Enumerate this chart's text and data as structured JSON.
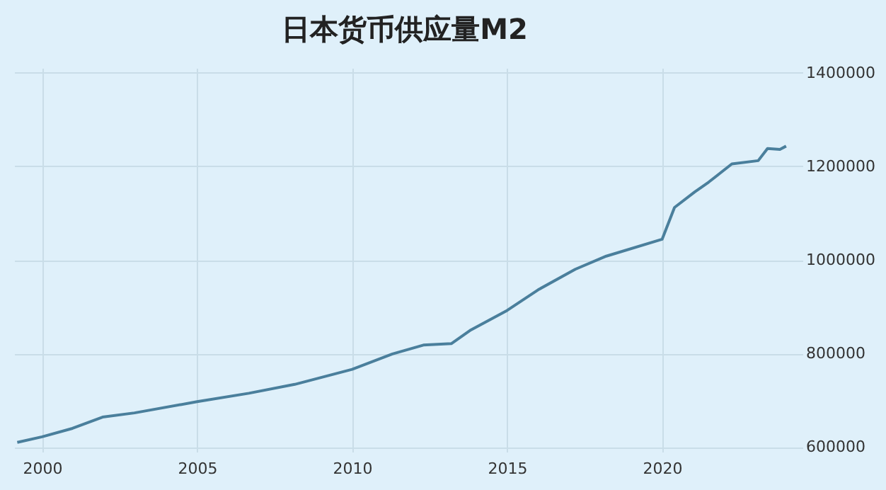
{
  "chart_data": {
    "type": "line",
    "title": "日本货币供应量M2",
    "x": [
      1999.2,
      2000.0,
      2000.98,
      2001.95,
      2002.98,
      2005.0,
      2006.67,
      2008.15,
      2010.0,
      2011.3,
      2012.3,
      2013.2,
      2013.8,
      2015.0,
      2016.0,
      2017.2,
      2018.2,
      2020.0,
      2020.4,
      2021.05,
      2021.5,
      2022.25,
      2023.1,
      2023.4,
      2023.8,
      2024.0
    ],
    "series": [
      {
        "color": "#4a7f9c",
        "values": [
          610000,
          622000,
          640000,
          664000,
          673000,
          697000,
          715000,
          734000,
          766000,
          799000,
          818000,
          821000,
          849000,
          892000,
          936000,
          980000,
          1008000,
          1044000,
          1112000,
          1145000,
          1166000,
          1205000,
          1212000,
          1238000,
          1236000,
          1243000
        ]
      }
    ],
    "xlim": [
      1999.1,
      2024.3
    ],
    "xticks": [
      2000,
      2005,
      2010,
      2015,
      2020
    ],
    "ylim": [
      590000,
      1410000
    ],
    "yticks": [
      600000,
      800000,
      1000000,
      1200000,
      1400000
    ],
    "grid": true,
    "marker": "none",
    "line_style": "solid"
  }
}
